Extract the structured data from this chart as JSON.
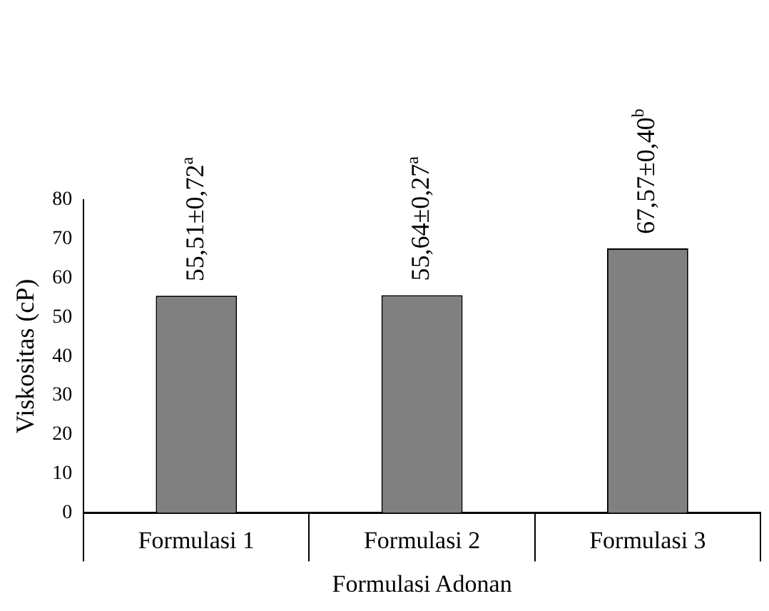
{
  "chart_data": {
    "type": "bar",
    "categories": [
      "Formulasi 1",
      "Formulasi 2",
      "Formulasi 3"
    ],
    "values": [
      55.51,
      55.64,
      67.57
    ],
    "value_labels": [
      "55,51±0,72$^{a}$",
      "55,64±0,27$^{a}$",
      "67,57±0,40$^{b}$"
    ],
    "color": "#808080",
    "xlabel": "Formulasi Adonan",
    "ylabel": "Viskositas (cP)",
    "ylim": [
      0,
      80
    ],
    "yticks": [
      0,
      10,
      20,
      30,
      40,
      50,
      60,
      70,
      80
    ],
    "grid": false,
    "legend": false
  }
}
